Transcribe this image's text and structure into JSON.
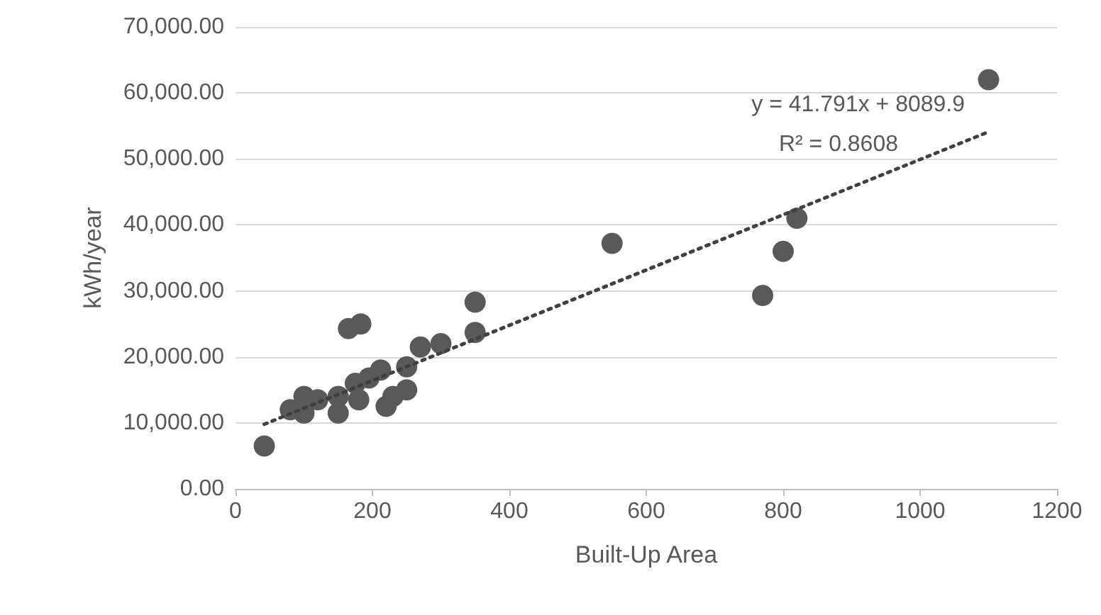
{
  "chart_data": {
    "type": "scatter",
    "xlabel": "Built-Up Area",
    "ylabel": "kWh/year",
    "annotations": [
      "y = 41.791x + 8089.9",
      "R² = 0.8608"
    ],
    "series": [
      {
        "color": "#595959",
        "x": [
          42,
          80,
          100,
          100,
          120,
          150,
          150,
          175,
          180,
          165,
          183,
          195,
          212,
          220,
          230,
          250,
          250,
          270,
          300,
          350,
          350,
          550,
          770,
          800,
          820,
          1100
        ],
        "values": [
          6500,
          12000,
          14000,
          11500,
          13500,
          14000,
          11500,
          16000,
          13500,
          24300,
          25000,
          16800,
          18000,
          12500,
          14000,
          15000,
          18500,
          21500,
          22000,
          28300,
          23700,
          37200,
          29300,
          36000,
          41000,
          62000
        ],
        "marker": "circle"
      },
      {
        "type": "line",
        "color": "#404040",
        "x": [
          42,
          1100
        ],
        "values": [
          9800,
          54100
        ],
        "line_style": "dotted",
        "marker": "none"
      }
    ],
    "xlim": [
      0,
      1200
    ],
    "xticks": [
      0,
      200,
      400,
      600,
      800,
      1000,
      1200
    ],
    "ylim": [
      0,
      70000
    ],
    "yticks": [
      {
        "value": 0,
        "label": "0.00"
      },
      {
        "value": 10000,
        "label": "10,000.00"
      },
      {
        "value": 20000,
        "label": "20,000.00"
      },
      {
        "value": 30000,
        "label": "30,000.00"
      },
      {
        "value": 40000,
        "label": "40,000.00"
      },
      {
        "value": 50000,
        "label": "50,000.00"
      },
      {
        "value": 60000,
        "label": "60,000.00"
      },
      {
        "value": 70000,
        "label": "70,000.00"
      }
    ],
    "grid": "y"
  }
}
